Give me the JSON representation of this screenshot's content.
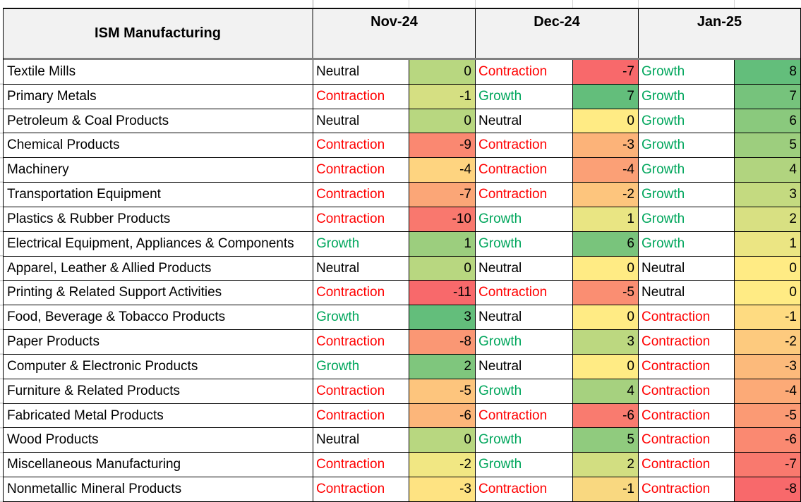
{
  "title": "ISM Manufacturing",
  "months": [
    "Nov-24",
    "Dec-24",
    "Jan-25"
  ],
  "status_colors": {
    "Growth": "#00A65C",
    "Neutral": "#000000",
    "Contraction": "#FF0000"
  },
  "scale_colors": {
    "min_red": "#F8696B",
    "mid_yellow": "#FFEB84",
    "max_green": "#63BE7B"
  },
  "rows": [
    {
      "name": "Textile Mills",
      "cells": [
        {
          "status": "Neutral",
          "value": 0,
          "color": "#B8D780"
        },
        {
          "status": "Contraction",
          "value": -7,
          "color": "#F8696B"
        },
        {
          "status": "Growth",
          "value": 8,
          "color": "#63BE7B"
        }
      ]
    },
    {
      "name": "Primary Metals",
      "cells": [
        {
          "status": "Contraction",
          "value": -1,
          "color": "#D5DF82"
        },
        {
          "status": "Growth",
          "value": 7,
          "color": "#63BE7B"
        },
        {
          "status": "Growth",
          "value": 7,
          "color": "#76C37C"
        }
      ]
    },
    {
      "name": "Petroleum & Coal Products",
      "cells": [
        {
          "status": "Neutral",
          "value": 0,
          "color": "#B8D780"
        },
        {
          "status": "Neutral",
          "value": 0,
          "color": "#FFEB84"
        },
        {
          "status": "Growth",
          "value": 6,
          "color": "#8AC97D"
        }
      ]
    },
    {
      "name": "Chemical Products",
      "cells": [
        {
          "status": "Contraction",
          "value": -9,
          "color": "#FA8871"
        },
        {
          "status": "Contraction",
          "value": -3,
          "color": "#FCB379"
        },
        {
          "status": "Growth",
          "value": 5,
          "color": "#9DCE7E"
        }
      ]
    },
    {
      "name": "Machinery",
      "cells": [
        {
          "status": "Contraction",
          "value": -4,
          "color": "#FED480"
        },
        {
          "status": "Contraction",
          "value": -4,
          "color": "#FBA076"
        },
        {
          "status": "Growth",
          "value": 4,
          "color": "#B1D47F"
        }
      ]
    },
    {
      "name": "Transportation Equipment",
      "cells": [
        {
          "status": "Contraction",
          "value": -7,
          "color": "#FBA677"
        },
        {
          "status": "Contraction",
          "value": -2,
          "color": "#FDC57D"
        },
        {
          "status": "Growth",
          "value": 3,
          "color": "#C4DA80"
        }
      ]
    },
    {
      "name": "Plastics & Rubber Products",
      "cells": [
        {
          "status": "Contraction",
          "value": -10,
          "color": "#F9786E"
        },
        {
          "status": "Growth",
          "value": 1,
          "color": "#E9E583"
        },
        {
          "status": "Growth",
          "value": 2,
          "color": "#D8E082"
        }
      ]
    },
    {
      "name": "Electrical Equipment, Appliances & Components",
      "cells": [
        {
          "status": "Growth",
          "value": 1,
          "color": "#9CCE7E"
        },
        {
          "status": "Growth",
          "value": 6,
          "color": "#79C47C"
        },
        {
          "status": "Growth",
          "value": 1,
          "color": "#EBE583"
        }
      ]
    },
    {
      "name": "Apparel, Leather & Allied Products",
      "cells": [
        {
          "status": "Neutral",
          "value": 0,
          "color": "#B8D780"
        },
        {
          "status": "Neutral",
          "value": 0,
          "color": "#FFEB84"
        },
        {
          "status": "Neutral",
          "value": 0,
          "color": "#FFEB84"
        }
      ]
    },
    {
      "name": "Printing & Related Support Activities",
      "cells": [
        {
          "status": "Contraction",
          "value": -11,
          "color": "#F8696B"
        },
        {
          "status": "Contraction",
          "value": -5,
          "color": "#FA8E72"
        },
        {
          "status": "Neutral",
          "value": 0,
          "color": "#FFEB84"
        }
      ]
    },
    {
      "name": "Food, Beverage & Tobacco Products",
      "cells": [
        {
          "status": "Growth",
          "value": 3,
          "color": "#63BE7B"
        },
        {
          "status": "Neutral",
          "value": 0,
          "color": "#FFEB84"
        },
        {
          "status": "Contraction",
          "value": -1,
          "color": "#FEDB81"
        }
      ]
    },
    {
      "name": "Paper Products",
      "cells": [
        {
          "status": "Contraction",
          "value": -8,
          "color": "#FA9774"
        },
        {
          "status": "Growth",
          "value": 3,
          "color": "#BCD880"
        },
        {
          "status": "Contraction",
          "value": -2,
          "color": "#FDCA7E"
        }
      ]
    },
    {
      "name": "Computer & Electronic Products",
      "cells": [
        {
          "status": "Growth",
          "value": 2,
          "color": "#7FC67D"
        },
        {
          "status": "Neutral",
          "value": 0,
          "color": "#FFEB84"
        },
        {
          "status": "Contraction",
          "value": -3,
          "color": "#FCBA7B"
        }
      ]
    },
    {
      "name": "Furniture & Related Products",
      "cells": [
        {
          "status": "Contraction",
          "value": -5,
          "color": "#FDC57D"
        },
        {
          "status": "Growth",
          "value": 4,
          "color": "#A6D17F"
        },
        {
          "status": "Contraction",
          "value": -4,
          "color": "#FCAA77"
        }
      ]
    },
    {
      "name": "Fabricated Metal Products",
      "cells": [
        {
          "status": "Contraction",
          "value": -6,
          "color": "#FCB67A"
        },
        {
          "status": "Contraction",
          "value": -6,
          "color": "#F97B6F"
        },
        {
          "status": "Contraction",
          "value": -5,
          "color": "#FB9A74"
        }
      ]
    },
    {
      "name": "Wood Products",
      "cells": [
        {
          "status": "Neutral",
          "value": 0,
          "color": "#B8D780"
        },
        {
          "status": "Growth",
          "value": 5,
          "color": "#90CB7E"
        },
        {
          "status": "Contraction",
          "value": -6,
          "color": "#FA8971"
        }
      ]
    },
    {
      "name": "Miscellaneous Manufacturing",
      "cells": [
        {
          "status": "Contraction",
          "value": -2,
          "color": "#F1E783"
        },
        {
          "status": "Growth",
          "value": 2,
          "color": "#D2DE81"
        },
        {
          "status": "Contraction",
          "value": -7,
          "color": "#F9796E"
        }
      ]
    },
    {
      "name": "Nonmetallic Mineral Products",
      "cells": [
        {
          "status": "Contraction",
          "value": -3,
          "color": "#FEE382"
        },
        {
          "status": "Contraction",
          "value": -1,
          "color": "#F9D880"
        },
        {
          "status": "Contraction",
          "value": -8,
          "color": "#F8696B"
        }
      ]
    }
  ]
}
